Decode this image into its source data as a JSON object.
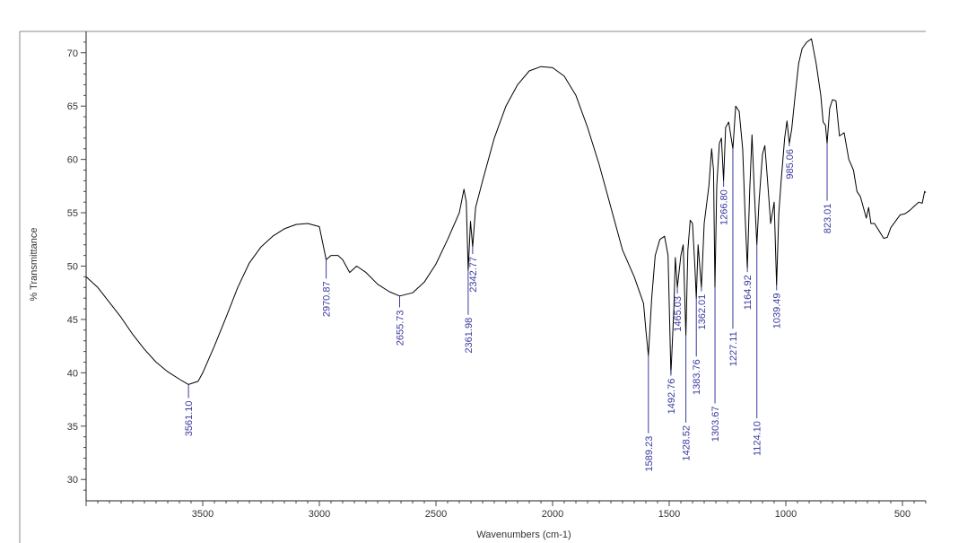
{
  "chart_data": {
    "type": "line",
    "title": "",
    "xlabel": "Wavenumbers (cm-1)",
    "ylabel": "% Transmittance",
    "xlim": [
      4000,
      400
    ],
    "ylim": [
      28,
      72
    ],
    "x_reversed": true,
    "x_ticks": [
      3500,
      3000,
      2500,
      2000,
      1500,
      1000,
      500
    ],
    "y_ticks": [
      30,
      35,
      40,
      45,
      50,
      55,
      60,
      65,
      70
    ],
    "grid": false,
    "line_color": "#000000",
    "peak_color": "#3a3aa0",
    "series": [
      {
        "values": [
          [
            4000,
            49
          ],
          [
            3950,
            48
          ],
          [
            3900,
            46.6
          ],
          [
            3850,
            45.2
          ],
          [
            3800,
            43.6
          ],
          [
            3750,
            42.2
          ],
          [
            3700,
            41
          ],
          [
            3650,
            40.1
          ],
          [
            3600,
            39.4
          ],
          [
            3561.1,
            38.9
          ],
          [
            3520,
            39.2
          ],
          [
            3500,
            40
          ],
          [
            3450,
            42.5
          ],
          [
            3400,
            45.2
          ],
          [
            3350,
            48
          ],
          [
            3300,
            50.3
          ],
          [
            3250,
            51.8
          ],
          [
            3200,
            52.8
          ],
          [
            3150,
            53.5
          ],
          [
            3100,
            53.9
          ],
          [
            3050,
            54.0
          ],
          [
            3000,
            53.7
          ],
          [
            2970.87,
            50.6
          ],
          [
            2950,
            51.0
          ],
          [
            2920,
            51.0
          ],
          [
            2900,
            50.6
          ],
          [
            2870,
            49.4
          ],
          [
            2840,
            50.0
          ],
          [
            2800,
            49.4
          ],
          [
            2750,
            48.3
          ],
          [
            2700,
            47.6
          ],
          [
            2655.73,
            47.2
          ],
          [
            2600,
            47.5
          ],
          [
            2550,
            48.5
          ],
          [
            2500,
            50.2
          ],
          [
            2450,
            52.5
          ],
          [
            2400,
            55.0
          ],
          [
            2380,
            57.2
          ],
          [
            2370,
            56.0
          ],
          [
            2361.98,
            49.6
          ],
          [
            2352,
            54.2
          ],
          [
            2342.77,
            51.8
          ],
          [
            2330,
            55.5
          ],
          [
            2300,
            58.0
          ],
          [
            2250,
            62.0
          ],
          [
            2200,
            65.0
          ],
          [
            2150,
            67.0
          ],
          [
            2100,
            68.3
          ],
          [
            2050,
            68.7
          ],
          [
            2000,
            68.6
          ],
          [
            1950,
            67.8
          ],
          [
            1900,
            66.0
          ],
          [
            1850,
            63.0
          ],
          [
            1800,
            59.5
          ],
          [
            1750,
            55.5
          ],
          [
            1700,
            51.5
          ],
          [
            1650,
            49.0
          ],
          [
            1610,
            46.5
          ],
          [
            1600,
            44.0
          ],
          [
            1589.23,
            41.6
          ],
          [
            1575,
            47.0
          ],
          [
            1560,
            51.0
          ],
          [
            1540,
            52.5
          ],
          [
            1520,
            52.8
          ],
          [
            1505,
            51.0
          ],
          [
            1492.76,
            39.9
          ],
          [
            1480,
            46.0
          ],
          [
            1474,
            50.8
          ],
          [
            1465.03,
            48.0
          ],
          [
            1450,
            51.0
          ],
          [
            1440,
            52.0
          ],
          [
            1428.52,
            43.5
          ],
          [
            1420,
            51.5
          ],
          [
            1410,
            54.3
          ],
          [
            1400,
            54.0
          ],
          [
            1390,
            50.0
          ],
          [
            1383.76,
            47.0
          ],
          [
            1376,
            52.0
          ],
          [
            1362.01,
            48.0
          ],
          [
            1350,
            54.0
          ],
          [
            1330,
            57.5
          ],
          [
            1318,
            61.0
          ],
          [
            1310,
            59.0
          ],
          [
            1303.67,
            48.0
          ],
          [
            1296,
            57.5
          ],
          [
            1285,
            61.5
          ],
          [
            1276,
            62.0
          ],
          [
            1266.8,
            58.0
          ],
          [
            1258,
            63.0
          ],
          [
            1245,
            63.5
          ],
          [
            1227.11,
            61.0
          ],
          [
            1215,
            65.0
          ],
          [
            1200,
            64.5
          ],
          [
            1185,
            61.0
          ],
          [
            1175,
            55.0
          ],
          [
            1164.92,
            49.8
          ],
          [
            1155,
            57.0
          ],
          [
            1145,
            62.3
          ],
          [
            1135,
            57.0
          ],
          [
            1124.1,
            52.0
          ],
          [
            1115,
            56.0
          ],
          [
            1100,
            60.5
          ],
          [
            1090,
            61.3
          ],
          [
            1080,
            58.5
          ],
          [
            1065,
            54.0
          ],
          [
            1050,
            56.0
          ],
          [
            1039.49,
            48.2
          ],
          [
            1030,
            55.0
          ],
          [
            1020,
            58.0
          ],
          [
            1005,
            62.0
          ],
          [
            995,
            63.6
          ],
          [
            985.06,
            61.5
          ],
          [
            975,
            62.8
          ],
          [
            960,
            66.0
          ],
          [
            945,
            69.0
          ],
          [
            930,
            70.4
          ],
          [
            910,
            71.0
          ],
          [
            890,
            71.3
          ],
          [
            870,
            69.0
          ],
          [
            850,
            66.0
          ],
          [
            840,
            63.5
          ],
          [
            830,
            63.2
          ],
          [
            823.01,
            61.5
          ],
          [
            812,
            64.8
          ],
          [
            800,
            65.6
          ],
          [
            785,
            65.5
          ],
          [
            770,
            62.2
          ],
          [
            750,
            62.5
          ],
          [
            730,
            60.0
          ],
          [
            710,
            59.0
          ],
          [
            695,
            57.0
          ],
          [
            680,
            56.5
          ],
          [
            665,
            55.3
          ],
          [
            655,
            54.5
          ],
          [
            645,
            55.5
          ],
          [
            635,
            54.0
          ],
          [
            620,
            54.0
          ],
          [
            600,
            53.3
          ],
          [
            580,
            52.6
          ],
          [
            565,
            52.7
          ],
          [
            550,
            53.6
          ],
          [
            530,
            54.2
          ],
          [
            510,
            54.8
          ],
          [
            490,
            54.9
          ],
          [
            470,
            55.2
          ],
          [
            450,
            55.6
          ],
          [
            430,
            56.0
          ],
          [
            415,
            55.9
          ],
          [
            405,
            57.0
          ],
          [
            400,
            56.9
          ]
        ]
      }
    ],
    "peaks": [
      {
        "label": "3561.10",
        "x": 3561.1,
        "y_top": 38.9,
        "y_bottom": 37.8
      },
      {
        "label": "2970.87",
        "x": 2970.87,
        "y_top": 50.6,
        "y_bottom": 49.0
      },
      {
        "label": "2655.73",
        "x": 2655.73,
        "y_top": 47.2,
        "y_bottom": 46.3
      },
      {
        "label": "2361.98",
        "x": 2361.98,
        "y_top": 49.6,
        "y_bottom": 45.6
      },
      {
        "label": "2342.77",
        "x": 2342.77,
        "y_top": 51.8,
        "y_bottom": 51.3
      },
      {
        "label": "1589.23",
        "x": 1589.23,
        "y_top": 41.6,
        "y_bottom": 34.5
      },
      {
        "label": "1492.76",
        "x": 1492.76,
        "y_top": 39.9,
        "y_bottom": 40.3
      },
      {
        "label": "1465.03",
        "x": 1465.03,
        "y_top": 48.0,
        "y_bottom": 47.6
      },
      {
        "label": "1428.52",
        "x": 1428.52,
        "y_top": 43.5,
        "y_bottom": 35.5
      },
      {
        "label": "1383.76",
        "x": 1383.76,
        "y_top": 47.0,
        "y_bottom": 41.7
      },
      {
        "label": "1362.01",
        "x": 1362.01,
        "y_top": 48.0,
        "y_bottom": 47.8
      },
      {
        "label": "1303.67",
        "x": 1303.67,
        "y_top": 48.0,
        "y_bottom": 37.3
      },
      {
        "label": "1266.80",
        "x": 1266.8,
        "y_top": 58.0,
        "y_bottom": 57.6
      },
      {
        "label": "1227.11",
        "x": 1227.11,
        "y_top": 61.0,
        "y_bottom": 44.3
      },
      {
        "label": "1164.92",
        "x": 1164.92,
        "y_top": 49.8,
        "y_bottom": 49.6
      },
      {
        "label": "1124.10",
        "x": 1124.1,
        "y_top": 52.0,
        "y_bottom": 35.9
      },
      {
        "label": "1039.49",
        "x": 1039.49,
        "y_top": 48.2,
        "y_bottom": 47.9
      },
      {
        "label": "985.06",
        "x": 985.06,
        "y_top": 61.5,
        "y_bottom": 61.4
      },
      {
        "label": "823.01",
        "x": 823.01,
        "y_top": 61.5,
        "y_bottom": 56.3
      }
    ]
  }
}
